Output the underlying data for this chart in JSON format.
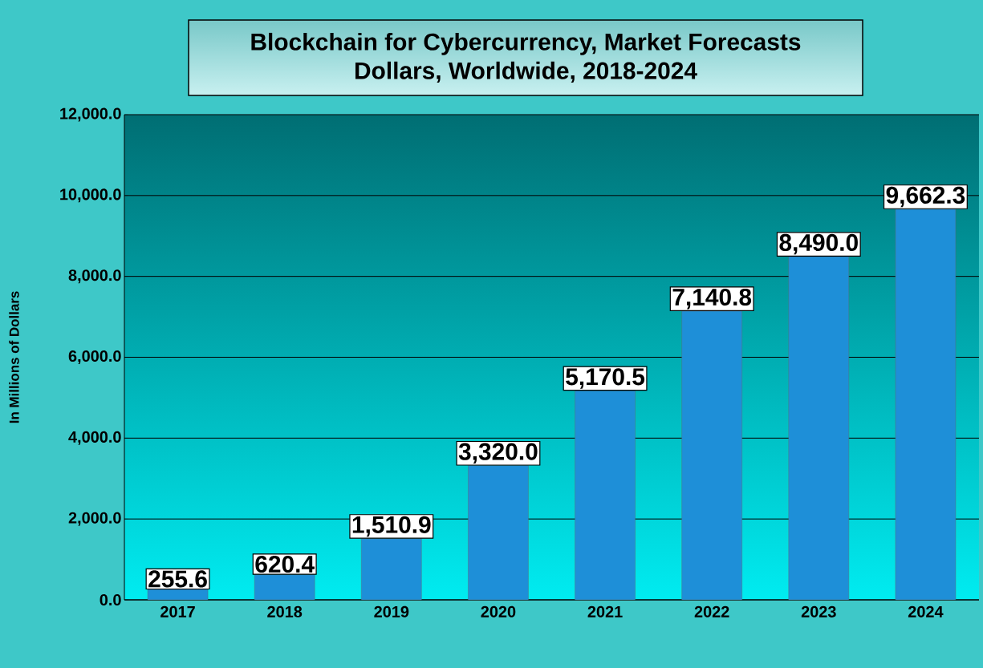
{
  "chart_data": {
    "type": "bar",
    "title": "Blockchain for Cybercurrency, Market Forecasts",
    "subtitle": "Dollars, Worldwide, 2018-2024",
    "ylabel": "In Millions of Dollars",
    "categories": [
      "2017",
      "2018",
      "2019",
      "2020",
      "2021",
      "2022",
      "2023",
      "2024"
    ],
    "values": [
      255.6,
      620.4,
      1510.9,
      3320.0,
      5170.5,
      7140.8,
      8490.0,
      9662.3
    ],
    "value_labels": [
      "255.6",
      "620.4",
      "1,510.9",
      "3,320.0",
      "5,170.5",
      "7,140.8",
      "8,490.0",
      "9,662.3"
    ],
    "color": "#1e8fd8",
    "ylim": [
      0,
      12000
    ],
    "yticks": [
      {
        "value": 0,
        "label": "0.0"
      },
      {
        "value": 2000,
        "label": "2,000.0"
      },
      {
        "value": 4000,
        "label": "4,000.0"
      },
      {
        "value": 6000,
        "label": "6,000.0"
      },
      {
        "value": 8000,
        "label": "8,000.0"
      },
      {
        "value": 10000,
        "label": "10,000.0"
      },
      {
        "value": 12000,
        "label": "12,000.0"
      }
    ],
    "grid": "y"
  }
}
